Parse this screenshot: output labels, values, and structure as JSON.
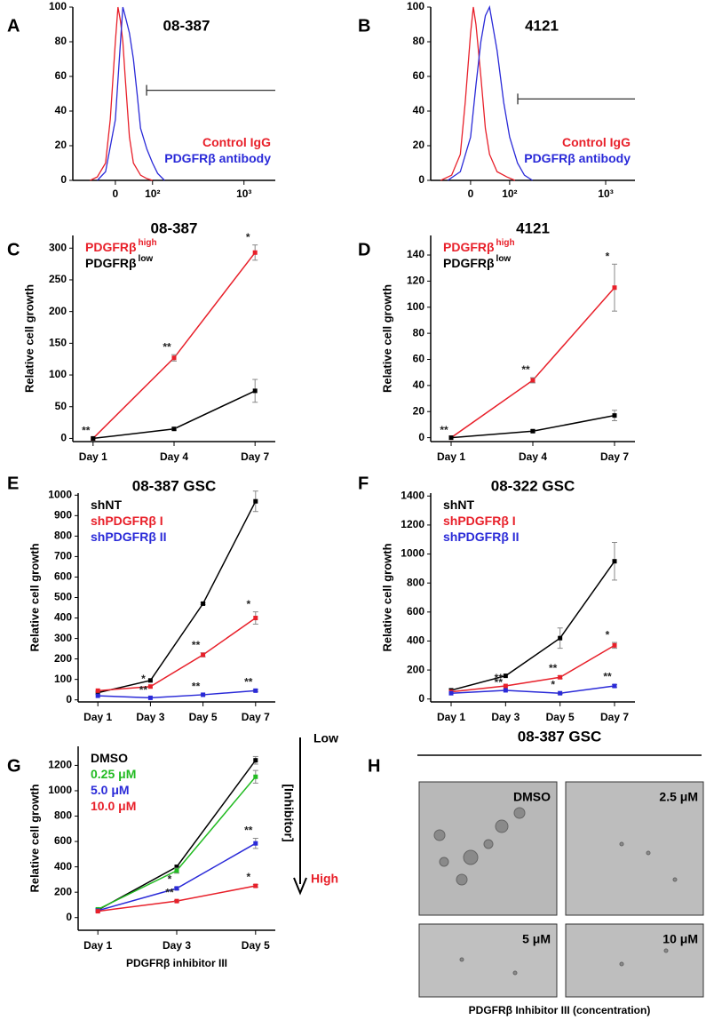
{
  "chart_data": [
    {
      "type": "density",
      "panel": "A",
      "title": "08-387",
      "xscale": "symlog",
      "symlog_constant": 100,
      "xlim": [
        -121,
        1872
      ],
      "xticks": [
        0,
        {
          "value": 100,
          "label": "10²"
        },
        {
          "value": 1000,
          "label": "10³"
        }
      ],
      "ylim": [
        0,
        100
      ],
      "yticks": [
        0,
        20,
        40,
        60,
        80,
        100
      ],
      "legend": "lower right",
      "gate": {
        "x": [
          79,
          1872
        ],
        "y": 52
      },
      "series": [
        {
          "name": "Control IgG",
          "color": "#e8202a",
          "x": [
            -60,
            -40,
            -20,
            -10,
            0,
            5,
            10,
            15,
            20,
            30,
            40,
            60,
            80,
            100
          ],
          "values": [
            0,
            2,
            10,
            35,
            80,
            100,
            92,
            80,
            60,
            25,
            10,
            3,
            1,
            0
          ]
        },
        {
          "name": "PDGFRβ antibody",
          "color": "#2a2ad8",
          "x": [
            -40,
            -20,
            0,
            10,
            15,
            20,
            30,
            40,
            50,
            60,
            80,
            100,
            120,
            150
          ],
          "values": [
            0,
            5,
            35,
            80,
            100,
            95,
            85,
            70,
            50,
            30,
            18,
            10,
            4,
            0
          ]
        }
      ]
    },
    {
      "type": "density",
      "panel": "B",
      "title": "4121",
      "xscale": "symlog",
      "symlog_constant": 100,
      "xlim": [
        -103,
        1750
      ],
      "xticks": [
        0,
        {
          "value": 100,
          "label": "10²"
        },
        {
          "value": 1000,
          "label": "10³"
        }
      ],
      "ylim": [
        0,
        100
      ],
      "yticks": [
        0,
        20,
        40,
        60,
        80,
        100
      ],
      "legend": "lower right",
      "gate": {
        "x": [
          131,
          1750
        ],
        "y": 47
      },
      "series": [
        {
          "name": "Control IgG",
          "color": "#e8202a",
          "x": [
            -70,
            -40,
            -20,
            -10,
            0,
            5,
            10,
            20,
            30,
            40,
            60,
            90,
            120
          ],
          "values": [
            0,
            3,
            15,
            45,
            85,
            100,
            90,
            60,
            30,
            15,
            5,
            2,
            0
          ]
        },
        {
          "name": "PDGFRβ antibody",
          "color": "#2a2ad8",
          "x": [
            -50,
            -20,
            0,
            10,
            20,
            30,
            40,
            60,
            80,
            100,
            130,
            160,
            200
          ],
          "values": [
            0,
            5,
            25,
            55,
            80,
            95,
            100,
            75,
            45,
            25,
            10,
            3,
            0
          ]
        }
      ]
    },
    {
      "type": "line",
      "panel": "C",
      "title": "08-387",
      "ylabel": "Relative cell growth",
      "categories": [
        "Day 1",
        "Day 4",
        "Day 7"
      ],
      "ylim": [
        -5,
        320
      ],
      "yticks": [
        0,
        50,
        100,
        150,
        200,
        250,
        300
      ],
      "legend": "upper left",
      "series": [
        {
          "name": "PDGFRβ",
          "superscript": "high",
          "color": "#e8202a",
          "values": [
            0,
            127,
            293
          ],
          "errors": [
            0,
            5,
            12
          ],
          "value_annotations": [
            "**",
            "**",
            "*"
          ]
        },
        {
          "name": "PDGFRβ",
          "superscript": "low",
          "color": "#000000",
          "values": [
            0,
            15,
            75
          ],
          "errors": [
            0,
            2,
            18
          ]
        }
      ]
    },
    {
      "type": "line",
      "panel": "D",
      "title": "4121",
      "ylabel": "Relative cell growth",
      "categories": [
        "Day 1",
        "Day 4",
        "Day 7"
      ],
      "ylim": [
        -3,
        155
      ],
      "yticks": [
        0,
        20,
        40,
        60,
        80,
        100,
        120,
        140
      ],
      "legend": "upper left",
      "series": [
        {
          "name": "PDGFRβ",
          "superscript": "high",
          "color": "#e8202a",
          "values": [
            0,
            44,
            115
          ],
          "errors": [
            0,
            2,
            18
          ],
          "value_annotations": [
            "**",
            "**",
            "*"
          ]
        },
        {
          "name": "PDGFRβ",
          "superscript": "low",
          "color": "#000000",
          "values": [
            0,
            5,
            17
          ],
          "errors": [
            0,
            1,
            4
          ]
        }
      ]
    },
    {
      "type": "line",
      "panel": "E",
      "title": "08-387 GSC",
      "ylabel": "Relative cell growth",
      "categories": [
        "Day 1",
        "Day 3",
        "Day 5",
        "Day 7"
      ],
      "ylim": [
        -10,
        1010
      ],
      "yticks": [
        0,
        100,
        200,
        300,
        400,
        500,
        600,
        700,
        800,
        900,
        1000
      ],
      "legend": "upper left",
      "series": [
        {
          "name": "shNT",
          "color": "#000000",
          "values": [
            35,
            95,
            470,
            970
          ],
          "errors": [
            0,
            0,
            5,
            50
          ]
        },
        {
          "name": "shPDGFRβ I",
          "color": "#e8202a",
          "values": [
            45,
            65,
            220,
            400
          ],
          "errors": [
            0,
            0,
            10,
            30
          ],
          "value_annotations": [
            null,
            "*",
            "**",
            "*"
          ]
        },
        {
          "name": "shPDGFRβ II",
          "color": "#2a2ad8",
          "values": [
            20,
            10,
            25,
            45
          ],
          "errors": [
            0,
            0,
            3,
            5
          ],
          "value_annotations": [
            null,
            "**",
            "**",
            "**"
          ]
        }
      ]
    },
    {
      "type": "line",
      "panel": "F",
      "title": "08-322 GSC",
      "ylabel": "Relative cell growth",
      "categories": [
        "Day 1",
        "Day 3",
        "Day 5",
        "Day 7"
      ],
      "ylim": [
        -20,
        1420
      ],
      "yticks": [
        0,
        200,
        400,
        600,
        800,
        1000,
        1200,
        1400
      ],
      "legend": "upper left",
      "series": [
        {
          "name": "shNT",
          "color": "#000000",
          "values": [
            60,
            160,
            420,
            950
          ],
          "errors": [
            0,
            0,
            70,
            130
          ]
        },
        {
          "name": "shPDGFRβ I",
          "color": "#e8202a",
          "values": [
            50,
            90,
            150,
            370
          ],
          "errors": [
            0,
            0,
            10,
            20
          ],
          "value_annotations": [
            null,
            "**",
            "**",
            "*"
          ]
        },
        {
          "name": "shPDGFRβ II",
          "color": "#2a2ad8",
          "values": [
            40,
            60,
            40,
            90
          ],
          "errors": [
            0,
            0,
            5,
            10
          ],
          "value_annotations": [
            null,
            "**",
            "*",
            "**"
          ]
        }
      ]
    },
    {
      "type": "line",
      "panel": "G",
      "ylabel": "Relative cell growth",
      "xlabel": "PDGFRβ inhibitor III",
      "categories": [
        "Day 1",
        "Day 3",
        "Day 5"
      ],
      "ylim": [
        -100,
        1350
      ],
      "yticks": [
        0,
        200,
        400,
        600,
        800,
        1000,
        1200
      ],
      "legend": "upper left",
      "arrow_labels": {
        "top": "Low",
        "bottom": "High",
        "axis": "[Inhibitor]"
      },
      "series": [
        {
          "name": "DMSO",
          "color": "#000000",
          "values": [
            60,
            400,
            1240
          ],
          "errors": [
            0,
            0,
            30
          ]
        },
        {
          "name": "0.25 μM",
          "color": "#22bb22",
          "values": [
            65,
            370,
            1110
          ],
          "errors": [
            0,
            20,
            50
          ]
        },
        {
          "name": "5.0 μM",
          "color": "#2a2ad8",
          "values": [
            55,
            230,
            585
          ],
          "errors": [
            0,
            10,
            40
          ],
          "value_annotations": [
            null,
            "*",
            "**"
          ]
        },
        {
          "name": "10.0 μM",
          "color": "#e8202a",
          "values": [
            50,
            130,
            250
          ],
          "errors": [
            0,
            5,
            10
          ],
          "value_annotations": [
            null,
            "**",
            "*"
          ]
        }
      ]
    }
  ],
  "image_panel": {
    "panel": "H",
    "title": "08-387 GSC",
    "images": [
      "DMSO",
      "2.5 μM",
      "5 μM",
      "10 μM"
    ],
    "caption": "PDGFRβ Inhibitor III (concentration)"
  }
}
